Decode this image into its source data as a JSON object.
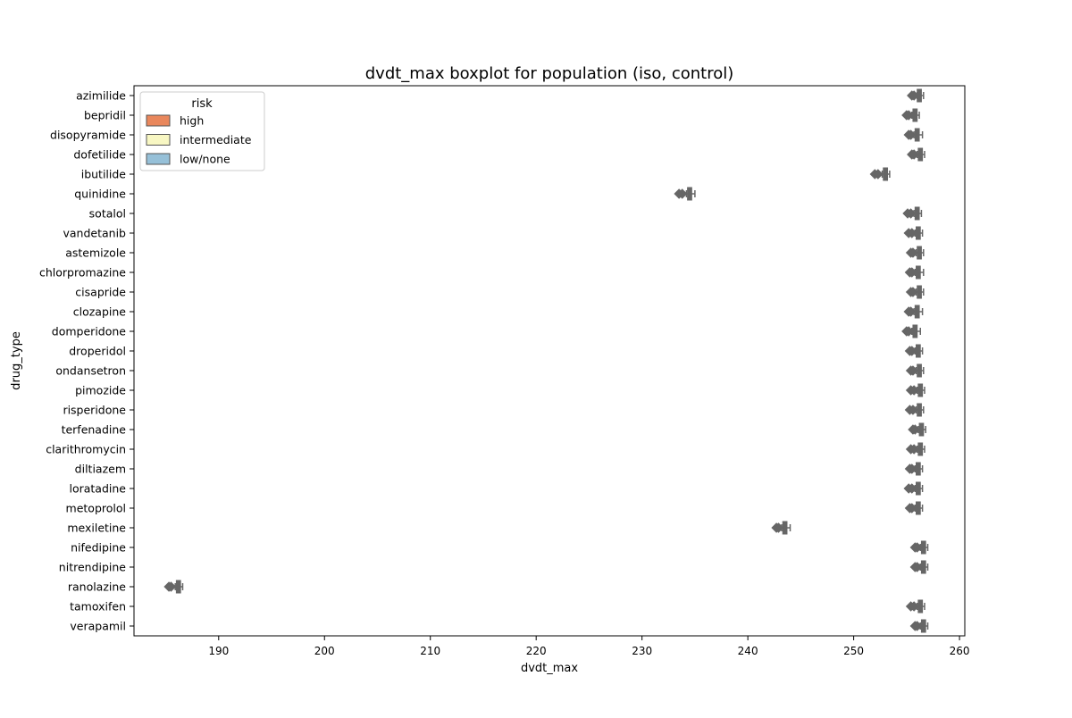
{
  "chart_data": {
    "type": "boxplot",
    "title": "dvdt_max boxplot for population (iso, control)",
    "xlabel": "dvdt_max",
    "ylabel": "drug_type",
    "xlim": [
      182,
      260.5
    ],
    "xticks": [
      190,
      200,
      210,
      220,
      230,
      240,
      250,
      260
    ],
    "orientation": "horizontal",
    "grid": false,
    "legend": {
      "title": "risk",
      "position": "top-left",
      "entries": [
        {
          "label": "high",
          "color": "#e9875c"
        },
        {
          "label": "intermediate",
          "color": "#f8f7c3"
        },
        {
          "label": "low/none",
          "color": "#96c0d8"
        }
      ]
    },
    "box_color": "#666666",
    "categories": [
      "azimilide",
      "bepridil",
      "disopyramide",
      "dofetilide",
      "ibutilide",
      "quinidine",
      "sotalol",
      "vandetanib",
      "astemizole",
      "chlorpromazine",
      "cisapride",
      "clozapine",
      "domperidone",
      "droperidol",
      "ondansetron",
      "pimozide",
      "risperidone",
      "terfenadine",
      "clarithromycin",
      "diltiazem",
      "loratadine",
      "metoprolol",
      "mexiletine",
      "nifedipine",
      "nitrendipine",
      "ranolazine",
      "tamoxifen",
      "verapamil"
    ],
    "boxes": [
      {
        "category": "azimilide",
        "whisker_low": 256.0,
        "q1": 256.0,
        "median": 256.2,
        "q3": 256.4,
        "whisker_high": 256.6,
        "outliers_low": [
          255.5,
          255.7
        ]
      },
      {
        "category": "bepridil",
        "whisker_low": 255.5,
        "q1": 255.6,
        "median": 255.8,
        "q3": 256.0,
        "whisker_high": 256.2,
        "outliers_low": [
          255.0,
          255.2
        ]
      },
      {
        "category": "disopyramide",
        "whisker_low": 255.7,
        "q1": 255.8,
        "median": 256.0,
        "q3": 256.2,
        "whisker_high": 256.5,
        "outliers_low": [
          255.2,
          255.4
        ]
      },
      {
        "category": "dofetilide",
        "whisker_low": 256.0,
        "q1": 256.1,
        "median": 256.3,
        "q3": 256.5,
        "whisker_high": 256.7,
        "outliers_low": [
          255.5,
          255.7
        ]
      },
      {
        "category": "ibutilide",
        "whisker_low": 252.7,
        "q1": 252.8,
        "median": 253.0,
        "q3": 253.2,
        "whisker_high": 253.4,
        "outliers_low": [
          252.0,
          252.3
        ]
      },
      {
        "category": "quinidine",
        "whisker_low": 234.2,
        "q1": 234.3,
        "median": 234.5,
        "q3": 234.7,
        "whisker_high": 235.0,
        "outliers_low": [
          233.5,
          233.8
        ]
      },
      {
        "category": "sotalol",
        "whisker_low": 255.7,
        "q1": 255.8,
        "median": 256.0,
        "q3": 256.2,
        "whisker_high": 256.4,
        "outliers_low": [
          255.1,
          255.4
        ]
      },
      {
        "category": "vandetanib",
        "whisker_low": 255.8,
        "q1": 255.9,
        "median": 256.1,
        "q3": 256.3,
        "whisker_high": 256.5,
        "outliers_low": [
          255.2,
          255.5
        ]
      },
      {
        "category": "astemizole",
        "whisker_low": 255.9,
        "q1": 256.0,
        "median": 256.2,
        "q3": 256.4,
        "whisker_high": 256.6,
        "outliers_low": [
          255.4,
          255.6
        ]
      },
      {
        "category": "chlorpromazine",
        "whisker_low": 255.8,
        "q1": 255.9,
        "median": 256.1,
        "q3": 256.3,
        "whisker_high": 256.6,
        "outliers_low": [
          255.3,
          255.5
        ]
      },
      {
        "category": "cisapride",
        "whisker_low": 255.9,
        "q1": 256.0,
        "median": 256.2,
        "q3": 256.4,
        "whisker_high": 256.6,
        "outliers_low": [
          255.4,
          255.6
        ]
      },
      {
        "category": "clozapine",
        "whisker_low": 255.7,
        "q1": 255.8,
        "median": 256.0,
        "q3": 256.2,
        "whisker_high": 256.5,
        "outliers_low": [
          255.2,
          255.4
        ]
      },
      {
        "category": "domperidone",
        "whisker_low": 255.5,
        "q1": 255.6,
        "median": 255.8,
        "q3": 256.0,
        "whisker_high": 256.3,
        "outliers_low": [
          255.0,
          255.2
        ]
      },
      {
        "category": "droperidol",
        "whisker_low": 255.8,
        "q1": 255.9,
        "median": 256.1,
        "q3": 256.3,
        "whisker_high": 256.5,
        "outliers_low": [
          255.3,
          255.5
        ]
      },
      {
        "category": "ondansetron",
        "whisker_low": 255.9,
        "q1": 256.0,
        "median": 256.2,
        "q3": 256.4,
        "whisker_high": 256.6,
        "outliers_low": [
          255.4,
          255.6
        ]
      },
      {
        "category": "pimozide",
        "whisker_low": 256.0,
        "q1": 256.1,
        "median": 256.3,
        "q3": 256.5,
        "whisker_high": 256.7,
        "outliers_low": [
          255.4,
          255.7
        ]
      },
      {
        "category": "risperidone",
        "whisker_low": 255.9,
        "q1": 256.0,
        "median": 256.2,
        "q3": 256.4,
        "whisker_high": 256.6,
        "outliers_low": [
          255.3,
          255.6
        ]
      },
      {
        "category": "terfenadine",
        "whisker_low": 256.1,
        "q1": 256.2,
        "median": 256.4,
        "q3": 256.6,
        "whisker_high": 256.8,
        "outliers_low": [
          255.6,
          255.8
        ]
      },
      {
        "category": "clarithromycin",
        "whisker_low": 256.0,
        "q1": 256.1,
        "median": 256.3,
        "q3": 256.5,
        "whisker_high": 256.7,
        "outliers_low": [
          255.4,
          255.7
        ]
      },
      {
        "category": "diltiazem",
        "whisker_low": 255.8,
        "q1": 255.9,
        "median": 256.1,
        "q3": 256.3,
        "whisker_high": 256.5,
        "outliers_low": [
          255.3,
          255.5
        ]
      },
      {
        "category": "loratadine",
        "whisker_low": 255.8,
        "q1": 255.9,
        "median": 256.1,
        "q3": 256.3,
        "whisker_high": 256.5,
        "outliers_low": [
          255.2,
          255.5
        ]
      },
      {
        "category": "metoprolol",
        "whisker_low": 255.8,
        "q1": 255.9,
        "median": 256.1,
        "q3": 256.3,
        "whisker_high": 256.5,
        "outliers_low": [
          255.3,
          255.5
        ]
      },
      {
        "category": "mexiletine",
        "whisker_low": 243.2,
        "q1": 243.3,
        "median": 243.5,
        "q3": 243.7,
        "whisker_high": 244.0,
        "outliers_low": [
          242.7,
          242.9
        ]
      },
      {
        "category": "nifedipine",
        "whisker_low": 256.3,
        "q1": 256.4,
        "median": 256.6,
        "q3": 256.8,
        "whisker_high": 257.0,
        "outliers_low": [
          255.8,
          256.0
        ]
      },
      {
        "category": "nitrendipine",
        "whisker_low": 256.3,
        "q1": 256.4,
        "median": 256.6,
        "q3": 256.8,
        "whisker_high": 257.0,
        "outliers_low": [
          255.8,
          256.0
        ]
      },
      {
        "category": "ranolazine",
        "whisker_low": 185.9,
        "q1": 186.0,
        "median": 186.2,
        "q3": 186.4,
        "whisker_high": 186.6,
        "outliers_low": [
          185.3,
          185.5
        ]
      },
      {
        "category": "tamoxifen",
        "whisker_low": 256.0,
        "q1": 256.1,
        "median": 256.3,
        "q3": 256.5,
        "whisker_high": 256.7,
        "outliers_low": [
          255.4,
          255.7
        ]
      },
      {
        "category": "verapamil",
        "whisker_low": 256.3,
        "q1": 256.4,
        "median": 256.6,
        "q3": 256.8,
        "whisker_high": 257.0,
        "outliers_low": [
          255.8,
          256.0
        ]
      }
    ]
  }
}
